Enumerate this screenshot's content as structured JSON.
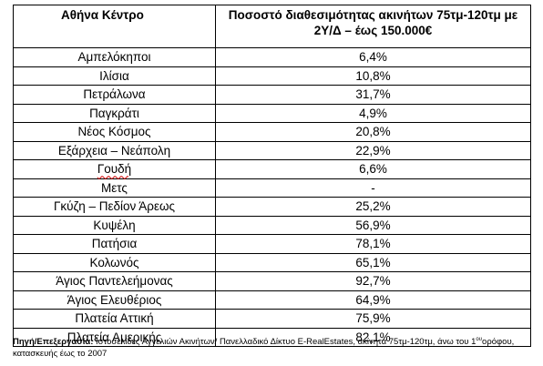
{
  "table": {
    "header_area": "Αθήνα Κέντρο",
    "header_pct": "Ποσοστό διαθεσιμότητας ακινήτων 75τμ-120τμ με 2Υ/Δ – έως 150.000€",
    "rows": [
      {
        "area": "Αμπελόκηποι",
        "pct": "6,4%"
      },
      {
        "area": "Ιλίσια",
        "pct": "10,8%"
      },
      {
        "area": "Πετράλωνα",
        "pct": "31,7%"
      },
      {
        "area": "Παγκράτι",
        "pct": "4,9%"
      },
      {
        "area": "Νέος Κόσμος",
        "pct": "20,8%"
      },
      {
        "area": "Εξάρχεια – Νεάπολη",
        "pct": "22,9%"
      },
      {
        "area": "Γουδή",
        "pct": "6,6%"
      },
      {
        "area": "Μετς",
        "pct": "-"
      },
      {
        "area": "Γκύζη – Πεδίον Άρεως",
        "pct": "25,2%"
      },
      {
        "area": "Κυψέλη",
        "pct": "56,9%"
      },
      {
        "area": "Πατήσια",
        "pct": "78,1%"
      },
      {
        "area": "Κολωνός",
        "pct": "65,1%"
      },
      {
        "area": "Άγιος Παντελεήμονας",
        "pct": "92,7%"
      },
      {
        "area": "Άγιος Ελευθέριος",
        "pct": "64,9%"
      },
      {
        "area": "Πλατεία Αττική",
        "pct": "75,9%"
      },
      {
        "area": "Πλατεία Αμερικής",
        "pct": "82,1%"
      }
    ]
  },
  "source": {
    "label": "Πηγή/Επεξεργασία:",
    "text_a": " Ιστοσελίδες Αγγελιών Ακινήτων/ Πανελλαδικό Δίκτυο E-RealEstates, ακίνητα 75τμ-120τμ,  άνω του 1",
    "superscript": "ου",
    "text_b": "ορόφου, κατασκευής έως το 2007"
  }
}
